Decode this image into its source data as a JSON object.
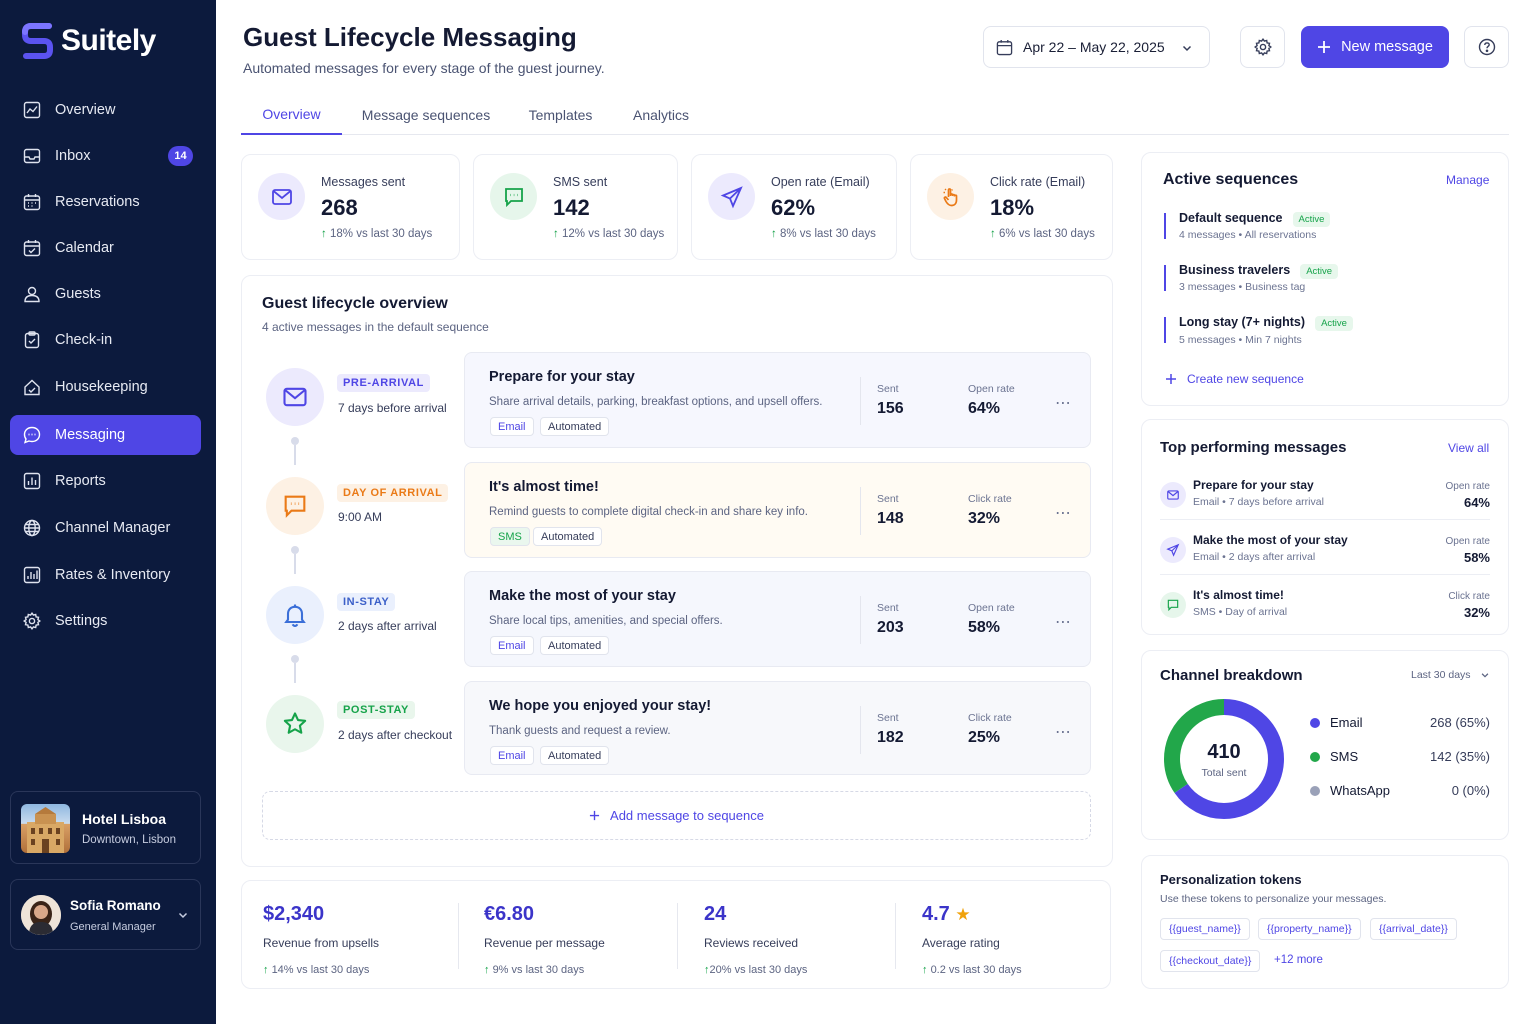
{
  "app": {
    "name": "Suitely"
  },
  "sidebar": {
    "items": [
      {
        "label": "Overview",
        "icon": "chart-icon"
      },
      {
        "label": "Inbox",
        "icon": "inbox-icon",
        "badge": "14"
      },
      {
        "label": "Reservations",
        "icon": "calendar-grid-icon"
      },
      {
        "label": "Calendar",
        "icon": "calendar-icon"
      },
      {
        "label": "Guests",
        "icon": "user-icon"
      },
      {
        "label": "Check-in",
        "icon": "clipboard-check-icon"
      },
      {
        "label": "Housekeeping",
        "icon": "broom-icon"
      },
      {
        "label": "Messaging",
        "icon": "chat-icon",
        "active": true
      },
      {
        "label": "Reports",
        "icon": "bar-chart-icon"
      },
      {
        "label": "Channel Manager",
        "icon": "globe-icon"
      },
      {
        "label": "Rates & Inventory",
        "icon": "rates-icon"
      },
      {
        "label": "Settings",
        "icon": "gear-icon"
      }
    ],
    "property": {
      "name": "Hotel Lisboa",
      "location": "Downtown, Lisbon"
    },
    "user": {
      "name": "Sofia Romano",
      "role": "General Manager"
    }
  },
  "header": {
    "title": "Guest Lifecycle Messaging",
    "subtitle": "Automated messages for every stage of the guest journey.",
    "date_range": "Apr 22 – May 22, 2025",
    "new_message": "New message"
  },
  "tabs": [
    {
      "label": "Overview",
      "active": true
    },
    {
      "label": "Message sequences"
    },
    {
      "label": "Templates"
    },
    {
      "label": "Analytics"
    }
  ],
  "stats": [
    {
      "label": "Messages sent",
      "value": "268",
      "delta": "18%",
      "delta_text": "vs last 30 days",
      "icon": "mail-icon"
    },
    {
      "label": "SMS sent",
      "value": "142",
      "delta": "12%",
      "delta_text": "vs last 30 days",
      "icon": "sms-icon"
    },
    {
      "label": "Open rate (Email)",
      "value": "62%",
      "delta": "8%",
      "delta_text": "vs last 30 days",
      "icon": "send-icon"
    },
    {
      "label": "Click rate (Email)",
      "value": "18%",
      "delta": "6%",
      "delta_text": "vs last 30 days",
      "icon": "pointer-icon"
    }
  ],
  "lifecycle": {
    "title": "Guest lifecycle overview",
    "subtitle": "4 active messages in the default sequence",
    "add_label": "Add message to sequence",
    "stages": [
      {
        "stage": "PRE-ARRIVAL",
        "when": "7 days before arrival",
        "title": "Prepare for your stay",
        "desc": "Share arrival details, parking, breakfast options, and upsell offers.",
        "channel": "Email",
        "mode": "Automated",
        "sent_label": "Sent",
        "sent": "156",
        "rate_label": "Open rate",
        "rate": "64%"
      },
      {
        "stage": "DAY OF ARRIVAL",
        "when": "9:00 AM",
        "title": "It's almost time!",
        "desc": "Remind guests to complete digital check-in and share key info.",
        "channel": "SMS",
        "mode": "Automated",
        "sent_label": "Sent",
        "sent": "148",
        "rate_label": "Click rate",
        "rate": "32%"
      },
      {
        "stage": "IN-STAY",
        "when": "2 days after arrival",
        "title": "Make the most of your stay",
        "desc": "Share local tips, amenities, and special offers.",
        "channel": "Email",
        "mode": "Automated",
        "sent_label": "Sent",
        "sent": "203",
        "rate_label": "Open rate",
        "rate": "58%"
      },
      {
        "stage": "POST-STAY",
        "when": "2 days after checkout",
        "title": "We hope you enjoyed your stay!",
        "desc": "Thank guests and request a review.",
        "channel": "Email",
        "mode": "Automated",
        "sent_label": "Sent",
        "sent": "182",
        "rate_label": "Click rate",
        "rate": "25%"
      }
    ]
  },
  "bottom_stats": [
    {
      "value": "$2,340",
      "label": "Revenue from upsells",
      "delta": "14%",
      "delta_text": "vs last 30 days"
    },
    {
      "value": "€6.80",
      "label": "Revenue per message",
      "delta": "9%",
      "delta_text": "vs last 30 days"
    },
    {
      "value": "24",
      "label": "Reviews received",
      "delta": "20%",
      "delta_text": "vs last 30 days"
    },
    {
      "value": "4.7",
      "label": "Average rating",
      "delta": "0.2",
      "delta_text": "vs last 30 days"
    }
  ],
  "sequences": {
    "title": "Active sequences",
    "manage": "Manage",
    "create": "Create new sequence",
    "items": [
      {
        "name": "Default sequence",
        "status": "Active",
        "count": "4 messages",
        "scope": "All reservations"
      },
      {
        "name": "Business travelers",
        "status": "Active",
        "count": "3 messages",
        "scope": "Business tag"
      },
      {
        "name": "Long stay (7+ nights)",
        "status": "Active",
        "count": "5 messages",
        "scope": "Min 7 nights"
      }
    ]
  },
  "top_messages": {
    "title": "Top performing messages",
    "view_all": "View all",
    "items": [
      {
        "name": "Prepare for your stay",
        "channel": "Email",
        "when": "7 days before arrival",
        "metric": "Open rate",
        "value": "64%",
        "icon": "mail-icon"
      },
      {
        "name": "Make the most of your stay",
        "channel": "Email",
        "when": "2 days after arrival",
        "metric": "Open rate",
        "value": "58%",
        "icon": "send-icon"
      },
      {
        "name": "It's almost time!",
        "channel": "SMS",
        "when": "Day of arrival",
        "metric": "Click rate",
        "value": "32%",
        "icon": "sms-icon"
      }
    ]
  },
  "channel_breakdown": {
    "title": "Channel breakdown",
    "range": "Last 30 days",
    "total": "410",
    "total_label": "Total sent",
    "items": [
      {
        "name": "Email",
        "value": "268 (65%)",
        "count": 268,
        "color": "#4f46e5"
      },
      {
        "name": "SMS",
        "value": "142 (35%)",
        "count": 142,
        "color": "#22a74a"
      },
      {
        "name": "WhatsApp",
        "value": "0 (0%)",
        "count": 0,
        "color": "#9aa1b8"
      }
    ]
  },
  "tokens": {
    "title": "Personalization tokens",
    "subtitle": "Use these tokens to personalize your messages.",
    "items": [
      "{{guest_name}}",
      "{{property_name}}",
      "{{arrival_date}}",
      "{{checkout_date}}"
    ],
    "more": "+12 more"
  },
  "colors": {
    "accent": "#4f46e5",
    "sidebar": "#0c1a3d",
    "success": "#16a34a",
    "orange": "#ea7a17"
  }
}
